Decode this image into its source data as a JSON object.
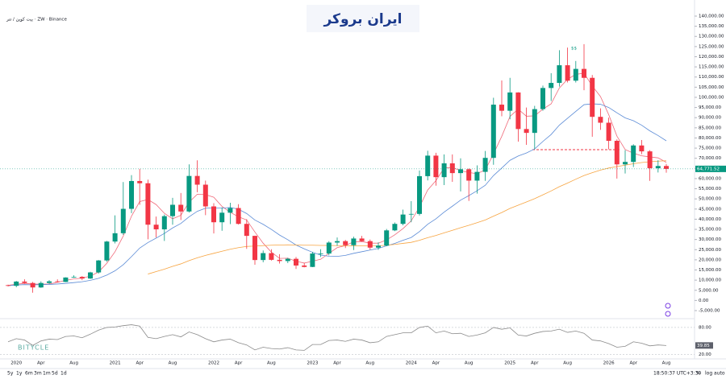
{
  "header": {
    "symbol": "بیت کوین / تتر · ZW · Binance",
    "logo": "ایران بروکر",
    "watermark": "BITYCLE",
    "annotation": "$$"
  },
  "toolbar": {
    "ranges": [
      "5y",
      "1y",
      "6m",
      "3m",
      "1m",
      "5d",
      "1d"
    ],
    "clock": "18:50:37 UTC+3:30",
    "options": [
      "%",
      "log",
      "auto"
    ]
  },
  "chart_data": {
    "type": "candlestick",
    "categories": [
      null,
      "2020",
      null,
      null,
      "Apr",
      null,
      null,
      null,
      "Aug",
      null,
      null,
      null,
      null,
      "2021",
      null,
      null,
      "Apr",
      null,
      null,
      null,
      "Aug",
      null,
      null,
      null,
      null,
      "2022",
      null,
      null,
      "Apr",
      null,
      null,
      null,
      "Aug",
      null,
      null,
      null,
      null,
      "2023",
      null,
      null,
      "Apr",
      null,
      null,
      null,
      "Aug",
      null,
      null,
      null,
      null,
      "2024",
      null,
      null,
      "Apr",
      null,
      null,
      null,
      "Aug",
      null,
      null,
      null,
      null,
      "2025",
      null,
      null,
      "Apr",
      null,
      null,
      null,
      "Aug",
      null,
      null,
      null,
      null,
      "2026",
      null,
      null,
      "Apr",
      null,
      null,
      null,
      "Aug"
    ],
    "open": [
      7500,
      7200,
      9300,
      8600,
      6400,
      8600,
      9400,
      9100,
      11300,
      11600,
      10800,
      13800,
      19700,
      29000,
      33100,
      45100,
      58800,
      57700,
      37300,
      35000,
      41500,
      47100,
      43800,
      61300,
      57000,
      46300,
      38500,
      43200,
      45500,
      37700,
      31800,
      19900,
      23300,
      20000,
      19400,
      20500,
      17200,
      16500,
      23100,
      23100,
      28500,
      29200,
      27200,
      30500,
      29200,
      26000,
      27000,
      34500,
      37700,
      42300,
      42600,
      61200,
      71300,
      60700,
      67500,
      62700,
      64600,
      59000,
      63300,
      70200,
      96400,
      93400,
      102400,
      84400,
      82500,
      94200,
      104600,
      107100,
      115800,
      108200,
      114000,
      109600,
      90400,
      87500,
      78600,
      67000,
      68200,
      76300,
      73400,
      65100,
      66200
    ],
    "high": [
      7800,
      9600,
      10400,
      9100,
      9400,
      10000,
      10400,
      11400,
      12400,
      12000,
      14100,
      19900,
      29300,
      41900,
      58300,
      61700,
      64800,
      59500,
      41300,
      42300,
      50500,
      52900,
      67000,
      69000,
      59000,
      47900,
      45800,
      48100,
      47400,
      40000,
      31900,
      24600,
      25200,
      22800,
      21000,
      21400,
      18400,
      23900,
      25200,
      29200,
      31000,
      29800,
      31400,
      31800,
      30000,
      28600,
      35200,
      38400,
      44700,
      48900,
      64000,
      73700,
      72700,
      71900,
      71900,
      70000,
      65000,
      66500,
      73600,
      99800,
      108300,
      109600,
      102500,
      95000,
      95800,
      105800,
      111900,
      123200,
      124500,
      117900,
      126200,
      111000,
      94600,
      90000,
      79300,
      74000,
      76900,
      79000,
      74000,
      69000,
      67200
    ],
    "low": [
      6900,
      6500,
      8200,
      3800,
      6200,
      8100,
      8900,
      9000,
      11200,
      10000,
      10600,
      13200,
      19000,
      28100,
      32300,
      43000,
      47100,
      30100,
      31000,
      29300,
      37300,
      39600,
      43300,
      53300,
      42000,
      33000,
      34300,
      37600,
      37400,
      25400,
      17600,
      18800,
      19600,
      18200,
      18400,
      15500,
      16300,
      16400,
      21400,
      22200,
      26900,
      25800,
      24800,
      28900,
      25000,
      24900,
      26700,
      34100,
      37000,
      38500,
      41800,
      59100,
      56500,
      56800,
      58400,
      53700,
      49000,
      52600,
      58900,
      66800,
      90700,
      89200,
      78200,
      76600,
      74500,
      93400,
      98200,
      105300,
      107300,
      107300,
      103500,
      80600,
      84000,
      74400,
      60000,
      62500,
      65700,
      72000,
      58900,
      63000,
      62900
    ],
    "close": [
      7200,
      9300,
      8600,
      6400,
      8600,
      9400,
      9100,
      11300,
      11600,
      10800,
      13800,
      19700,
      29000,
      33100,
      45100,
      58800,
      57700,
      37300,
      35000,
      41500,
      47100,
      43800,
      61300,
      57000,
      46300,
      38500,
      43200,
      45500,
      37700,
      31800,
      19900,
      23300,
      20000,
      19400,
      20500,
      17200,
      16500,
      23100,
      23100,
      28500,
      29200,
      27200,
      30500,
      29200,
      26000,
      27000,
      34500,
      37700,
      42300,
      42600,
      61200,
      71300,
      60700,
      67500,
      62700,
      64600,
      59000,
      63300,
      70200,
      96400,
      93400,
      102400,
      84400,
      82500,
      94200,
      104600,
      107100,
      115800,
      108200,
      114000,
      109600,
      90400,
      87500,
      78600,
      67000,
      68200,
      76300,
      73400,
      65100,
      66200,
      64771.52
    ],
    "last_price_label": "64,771.52",
    "up_color": "#089981",
    "down_color": "#f23645",
    "series": [
      {
        "color": "#f06a7a",
        "values": [
          7400,
          8000,
          8400,
          8100,
          8000,
          8100,
          8900,
          9900,
          10600,
          11000,
          12000,
          14000,
          18300,
          24000,
          31700,
          41500,
          48700,
          49700,
          47200,
          42900,
          40200,
          41900,
          48400,
          52300,
          52100,
          50800,
          46300,
          43400,
          41200,
          39600,
          33700,
          28200,
          23800,
          20700,
          20800,
          19300,
          18400,
          19300,
          20300,
          23200,
          26000,
          27000,
          28900,
          29000,
          28200,
          28200,
          29800,
          32300,
          35400,
          39200,
          46000,
          54400,
          59000,
          65200,
          65500,
          63900,
          63000,
          62400,
          64300,
          72200,
          80800,
          90600,
          94200,
          90700,
          90900,
          94200,
          96800,
          104600,
          108900,
          111300,
          111900,
          105600,
          100400,
          91500,
          80900,
          74300,
          72500,
          71200,
          70700,
          70200,
          68000
        ]
      },
      {
        "color": "#5b8bd6",
        "values": [
          7300,
          7600,
          7800,
          7700,
          7800,
          7900,
          8100,
          8400,
          8800,
          9200,
          9900,
          10900,
          12500,
          14600,
          17600,
          21600,
          25800,
          28500,
          30700,
          33000,
          35700,
          37900,
          41200,
          43900,
          45400,
          45600,
          45400,
          45800,
          44900,
          42800,
          39600,
          37500,
          35000,
          32200,
          29900,
          27300,
          25400,
          23700,
          22300,
          21800,
          21700,
          22200,
          23200,
          24000,
          24800,
          25600,
          26900,
          28100,
          29600,
          31000,
          33900,
          37500,
          40200,
          43500,
          46400,
          49400,
          51600,
          54000,
          56700,
          61500,
          65200,
          69000,
          71100,
          72600,
          74600,
          78300,
          81700,
          86300,
          89700,
          93100,
          96400,
          96800,
          96600,
          95000,
          92400,
          89900,
          88500,
          86300,
          83500,
          81200,
          78600
        ]
      },
      {
        "color": "#f7a440",
        "values": [
          null,
          null,
          null,
          null,
          null,
          null,
          null,
          null,
          null,
          null,
          null,
          null,
          null,
          null,
          null,
          null,
          null,
          13000,
          14200,
          15400,
          16800,
          18000,
          19600,
          21000,
          22200,
          23200,
          24200,
          25200,
          26000,
          26600,
          26800,
          27000,
          27200,
          27300,
          27400,
          27300,
          27200,
          27200,
          27100,
          27100,
          27000,
          26900,
          26900,
          26900,
          26800,
          26900,
          27200,
          27600,
          28100,
          28600,
          29600,
          30900,
          32000,
          33300,
          34500,
          35800,
          37000,
          38300,
          39600,
          41500,
          43300,
          45300,
          46900,
          48500,
          50100,
          52000,
          53900,
          56000,
          57800,
          59700,
          61500,
          62900,
          64200,
          65200,
          65900,
          66600,
          67300,
          67900,
          68300,
          68600,
          68800
        ]
      }
    ],
    "ylim": [
      -5000,
      140000
    ],
    "yticks": [
      {
        "value": 140000,
        "label": "140,000.00"
      },
      {
        "value": 135000,
        "label": "135,000.00"
      },
      {
        "value": 130000,
        "label": "130,000.00"
      },
      {
        "value": 125000,
        "label": "125,000.00"
      },
      {
        "value": 120000,
        "label": "120,000.00"
      },
      {
        "value": 115000,
        "label": "115,000.00"
      },
      {
        "value": 110000,
        "label": "110,000.00"
      },
      {
        "value": 105000,
        "label": "105,000.00"
      },
      {
        "value": 100000,
        "label": "100,000.00"
      },
      {
        "value": 95000,
        "label": "95,000.00"
      },
      {
        "value": 90000,
        "label": "90,000.00"
      },
      {
        "value": 85000,
        "label": "85,000.00"
      },
      {
        "value": 80000,
        "label": "80,000.00"
      },
      {
        "value": 75000,
        "label": "75,000.00"
      },
      {
        "value": 70000,
        "label": "70,000.00"
      },
      {
        "value": 65000,
        "label": "65,000.00"
      },
      {
        "value": 60000,
        "label": "60,000.00"
      },
      {
        "value": 55000,
        "label": "55,000.00"
      },
      {
        "value": 50000,
        "label": "50,000.00"
      },
      {
        "value": 45000,
        "label": "45,000.00"
      },
      {
        "value": 40000,
        "label": "40,000.00"
      },
      {
        "value": 35000,
        "label": "35,000.00"
      },
      {
        "value": 30000,
        "label": "30,000.00"
      },
      {
        "value": 25000,
        "label": "25,000.00"
      },
      {
        "value": 20000,
        "label": "20,000.00"
      },
      {
        "value": 15000,
        "label": "15,000.00"
      },
      {
        "value": 10000,
        "label": "10,000.00"
      },
      {
        "value": 5000,
        "label": "5,000.00"
      },
      {
        "value": 0,
        "label": "0.00"
      },
      {
        "value": -5000,
        "label": "-5,000.00"
      }
    ],
    "grid": false,
    "rsi": {
      "color": "#8a8a8a",
      "values": [
        48,
        55,
        52,
        40,
        50,
        54,
        53,
        60,
        61,
        57,
        65,
        74,
        80,
        81,
        84,
        86,
        83,
        58,
        55,
        60,
        64,
        59,
        70,
        64,
        55,
        48,
        52,
        54,
        46,
        41,
        30,
        36,
        33,
        32,
        35,
        30,
        29,
        42,
        42,
        51,
        52,
        49,
        54,
        52,
        46,
        48,
        60,
        64,
        68,
        68,
        80,
        83,
        68,
        72,
        66,
        67,
        60,
        63,
        68,
        80,
        76,
        79,
        63,
        61,
        67,
        71,
        72,
        76,
        69,
        72,
        67,
        52,
        50,
        44,
        36,
        38,
        48,
        45,
        39,
        41,
        39.85
      ],
      "last_label": "39.85",
      "ylim": [
        10,
        96
      ],
      "yticks": [
        {
          "value": 80,
          "label": "80.00"
        },
        {
          "value": 20,
          "label": "20.00"
        }
      ]
    }
  }
}
